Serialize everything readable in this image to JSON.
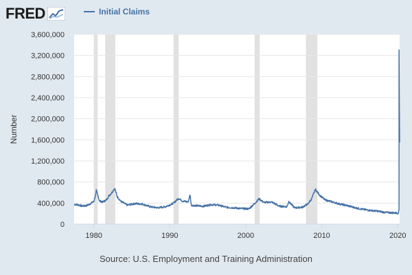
{
  "logo": {
    "text": "FRED",
    "mark_icon": "line-chart-icon"
  },
  "source": "Source: U.S. Employment and Training Administration",
  "colors": {
    "line": "#4572a7",
    "recession": "#e1e1e1",
    "background": "#e1e9f0",
    "plot": "#ffffff",
    "gridline": "#e6e6e6"
  },
  "chart_data": {
    "type": "line",
    "title": "",
    "xlabel": "",
    "ylabel": "Number",
    "xlim": [
      "1977-06",
      "2020-04"
    ],
    "ylim": [
      0,
      3600000
    ],
    "grid": "horizontal",
    "legend": "top-left",
    "legend_entries": [
      "Initial Claims"
    ],
    "x_ticks": [
      {
        "year": 1980,
        "label": "1980"
      },
      {
        "year": 1990,
        "label": "1990"
      },
      {
        "year": 2000,
        "label": "2000"
      },
      {
        "year": 2010,
        "label": "2010"
      },
      {
        "year": 2020,
        "label": "2020"
      }
    ],
    "y_ticks": [
      0,
      400000,
      800000,
      1200000,
      1600000,
      2000000,
      2400000,
      2800000,
      3200000,
      3600000
    ],
    "y_tick_labels": [
      "0",
      "400,000",
      "800,000",
      "1,200,000",
      "1,600,000",
      "2,000,000",
      "2,400,000",
      "2,800,000",
      "3,200,000",
      "3,600,000"
    ],
    "recessions": [
      [
        "1980-01",
        "1980-07"
      ],
      [
        "1981-07",
        "1982-11"
      ],
      [
        "1990-07",
        "1991-03"
      ],
      [
        "2001-03",
        "2001-11"
      ],
      [
        "2007-12",
        "2009-06"
      ]
    ],
    "series": [
      {
        "name": "Initial Claims",
        "color": "#4572a7",
        "points": [
          [
            "1977-06",
            375000
          ],
          [
            "1978-01",
            365000
          ],
          [
            "1978-06",
            345000
          ],
          [
            "1979-01",
            350000
          ],
          [
            "1979-06",
            375000
          ],
          [
            "1980-01",
            430000
          ],
          [
            "1980-04",
            560000
          ],
          [
            "1980-05",
            640000
          ],
          [
            "1980-07",
            560000
          ],
          [
            "1980-10",
            440000
          ],
          [
            "1981-03",
            420000
          ],
          [
            "1981-09",
            460000
          ],
          [
            "1982-01",
            540000
          ],
          [
            "1982-05",
            590000
          ],
          [
            "1982-10",
            680000
          ],
          [
            "1983-02",
            520000
          ],
          [
            "1983-08",
            430000
          ],
          [
            "1984-06",
            360000
          ],
          [
            "1985-06",
            390000
          ],
          [
            "1986-06",
            380000
          ],
          [
            "1987-06",
            330000
          ],
          [
            "1988-06",
            310000
          ],
          [
            "1989-06",
            330000
          ],
          [
            "1990-06",
            390000
          ],
          [
            "1991-03",
            490000
          ],
          [
            "1991-09",
            440000
          ],
          [
            "1992-06",
            420000
          ],
          [
            "1992-09",
            560000
          ],
          [
            "1992-11",
            360000
          ],
          [
            "1993-06",
            350000
          ],
          [
            "1994-06",
            340000
          ],
          [
            "1995-06",
            370000
          ],
          [
            "1996-06",
            360000
          ],
          [
            "1997-06",
            320000
          ],
          [
            "1998-06",
            310000
          ],
          [
            "1999-06",
            295000
          ],
          [
            "2000-06",
            290000
          ],
          [
            "2001-03",
            390000
          ],
          [
            "2001-10",
            480000
          ],
          [
            "2002-06",
            410000
          ],
          [
            "2003-06",
            420000
          ],
          [
            "2004-06",
            340000
          ],
          [
            "2005-06",
            330000
          ],
          [
            "2005-09",
            430000
          ],
          [
            "2006-06",
            310000
          ],
          [
            "2007-06",
            320000
          ],
          [
            "2008-03",
            380000
          ],
          [
            "2008-09",
            480000
          ],
          [
            "2009-03",
            660000
          ],
          [
            "2009-09",
            560000
          ],
          [
            "2010-06",
            460000
          ],
          [
            "2011-06",
            420000
          ],
          [
            "2012-06",
            380000
          ],
          [
            "2013-06",
            350000
          ],
          [
            "2014-06",
            310000
          ],
          [
            "2015-06",
            280000
          ],
          [
            "2016-06",
            260000
          ],
          [
            "2017-06",
            245000
          ],
          [
            "2018-06",
            220000
          ],
          [
            "2019-06",
            215000
          ],
          [
            "2020-02",
            210000
          ],
          [
            "2020-03",
            282000
          ],
          [
            "2020-03",
            3307000
          ],
          [
            "2020-04",
            1550000
          ]
        ]
      }
    ]
  }
}
